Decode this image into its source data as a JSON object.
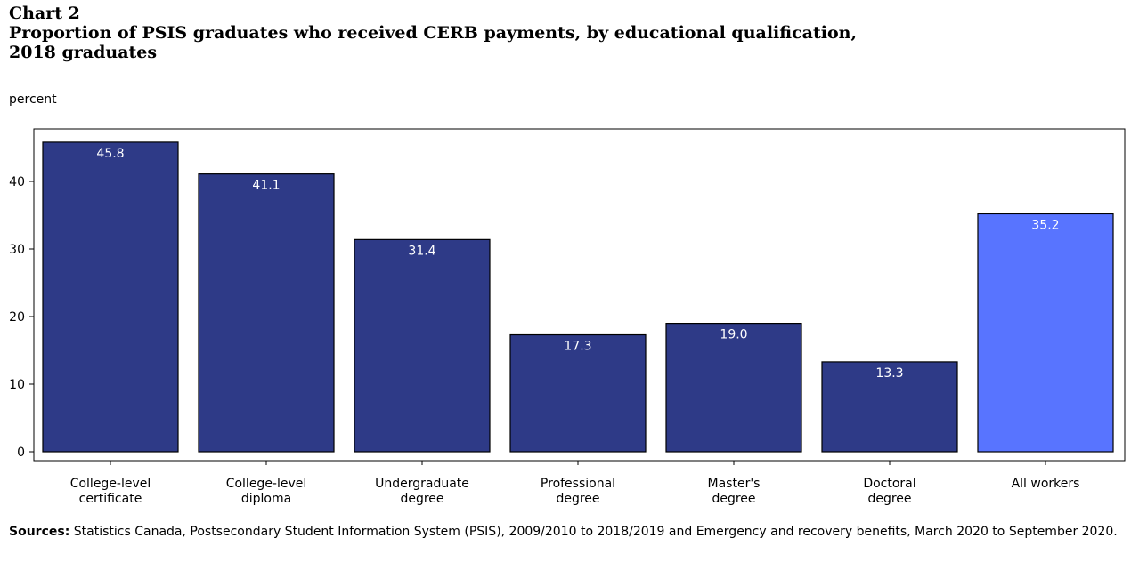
{
  "header": {
    "label": "Chart 2",
    "title_line1": "Proportion of PSIS graduates who received CERB payments, by educational qualification,",
    "title_line2": "2018 graduates"
  },
  "footer": {
    "sources_label": "Sources:",
    "sources_text": "Statistics Canada, Postsecondary Student Information System (PSIS), 2009/2010 to 2018/2019 and Emergency and recovery benefits, March 2020 to September 2020."
  },
  "colors": {
    "primary_bar": "#2e3a87",
    "highlight_bar": "#5874ff",
    "label_text": "#ffffff"
  },
  "chart_data": {
    "type": "bar",
    "title": "Proportion of PSIS graduates who received CERB payments, by educational qualification, 2018 graduates",
    "ylabel": "percent",
    "xlabel": "",
    "categories": [
      [
        "College-level",
        "certificate"
      ],
      [
        "College-level",
        "diploma"
      ],
      [
        "Undergraduate",
        "degree"
      ],
      [
        "Professional",
        "degree"
      ],
      [
        "Master's",
        "degree"
      ],
      [
        "Doctoral",
        "degree"
      ],
      [
        "All workers"
      ]
    ],
    "values": [
      45.8,
      41.1,
      31.4,
      17.3,
      19.0,
      13.3,
      35.2
    ],
    "highlight_index": 6,
    "ylim": [
      0,
      48
    ],
    "yticks": [
      0,
      10,
      20,
      30,
      40
    ],
    "grid": false,
    "legend": "none"
  }
}
